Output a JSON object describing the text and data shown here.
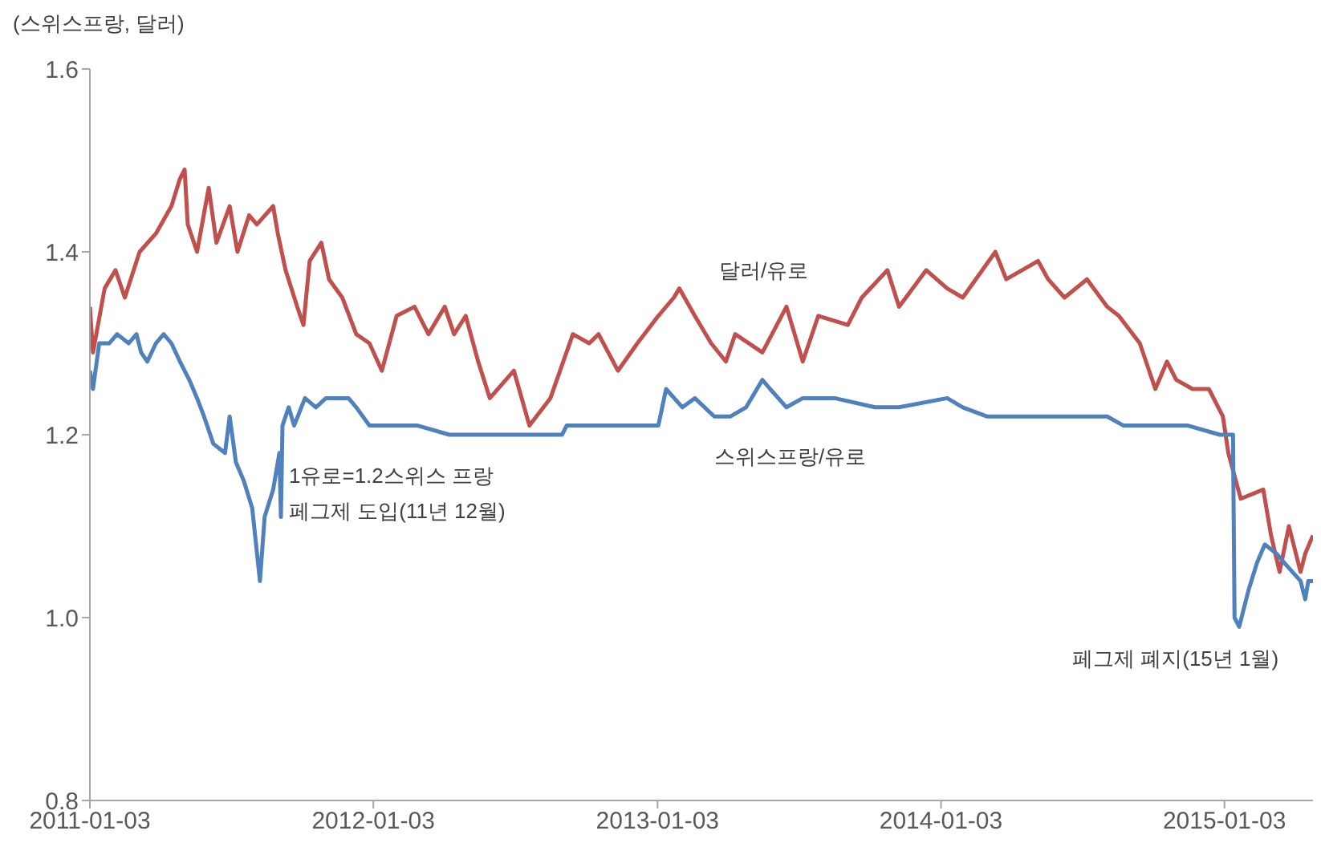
{
  "chart_data": {
    "type": "line",
    "ylabel": "(스위스프랑, 달러)",
    "xlim": [
      "2011-01-03",
      "2015-04-27"
    ],
    "xticks": [
      "2011-01-03",
      "2012-01-03",
      "2013-01-03",
      "2014-01-03",
      "2015-01-03"
    ],
    "ylim": [
      0.8,
      1.6
    ],
    "yticks": [
      {
        "value": 0.8,
        "label": "0.8"
      },
      {
        "value": 1.0,
        "label": "1.0"
      },
      {
        "value": 1.2,
        "label": "1.2"
      },
      {
        "value": 1.4,
        "label": "1.4"
      },
      {
        "value": 1.6,
        "label": "1.6"
      }
    ],
    "grid": false,
    "marker": "none",
    "line_style": "solid",
    "annotations": [
      "1유로=1.2스위스 프랑\n페그제 도입(11년 12월)",
      "페그제 폐지(15년 1월)"
    ],
    "series": [
      {
        "name": "달러/유로",
        "color": "#c0504d",
        "x": [
          "2011-01-03",
          "2011-01-07",
          "2011-01-22",
          "2011-02-05",
          "2011-02-17",
          "2011-03-08",
          "2011-03-29",
          "2011-04-18",
          "2011-04-29",
          "2011-05-05",
          "2011-05-09",
          "2011-05-21",
          "2011-06-05",
          "2011-06-15",
          "2011-07-02",
          "2011-07-12",
          "2011-07-27",
          "2011-08-06",
          "2011-08-27",
          "2011-09-02",
          "2011-09-12",
          "2011-09-27",
          "2011-10-05",
          "2011-10-13",
          "2011-10-28",
          "2011-11-07",
          "2011-11-24",
          "2011-12-12",
          "2011-12-29",
          "2012-01-14",
          "2012-02-02",
          "2012-02-25",
          "2012-03-14",
          "2012-04-04",
          "2012-04-16",
          "2012-05-01",
          "2012-05-17",
          "2012-06-01",
          "2012-07-02",
          "2012-07-22",
          "2012-08-18",
          "2012-09-16",
          "2012-10-07",
          "2012-10-19",
          "2012-11-13",
          "2012-12-08",
          "2013-01-04",
          "2013-01-24",
          "2013-01-31",
          "2013-02-20",
          "2013-03-13",
          "2013-04-01",
          "2013-04-13",
          "2013-05-18",
          "2013-06-18",
          "2013-07-09",
          "2013-07-29",
          "2013-09-05",
          "2013-09-23",
          "2013-10-26",
          "2013-11-10",
          "2013-12-15",
          "2014-01-11",
          "2014-01-31",
          "2014-03-14",
          "2014-03-28",
          "2014-05-08",
          "2014-05-21",
          "2014-06-11",
          "2014-07-10",
          "2014-08-05",
          "2014-08-20",
          "2014-09-16",
          "2014-10-06",
          "2014-10-21",
          "2014-11-02",
          "2014-11-23",
          "2014-12-14",
          "2015-01-01",
          "2015-01-08",
          "2015-01-24",
          "2015-02-22",
          "2015-03-04",
          "2015-03-15",
          "2015-03-27",
          "2015-04-11",
          "2015-04-17",
          "2015-04-27"
        ],
        "values": [
          1.34,
          1.29,
          1.36,
          1.38,
          1.35,
          1.4,
          1.42,
          1.45,
          1.48,
          1.49,
          1.43,
          1.4,
          1.47,
          1.41,
          1.45,
          1.4,
          1.44,
          1.43,
          1.45,
          1.42,
          1.38,
          1.34,
          1.32,
          1.39,
          1.41,
          1.37,
          1.35,
          1.31,
          1.3,
          1.27,
          1.33,
          1.34,
          1.31,
          1.34,
          1.31,
          1.33,
          1.28,
          1.24,
          1.27,
          1.21,
          1.24,
          1.31,
          1.3,
          1.31,
          1.27,
          1.3,
          1.33,
          1.35,
          1.36,
          1.33,
          1.3,
          1.28,
          1.31,
          1.29,
          1.34,
          1.28,
          1.33,
          1.32,
          1.35,
          1.38,
          1.34,
          1.38,
          1.36,
          1.35,
          1.4,
          1.37,
          1.39,
          1.37,
          1.35,
          1.37,
          1.34,
          1.33,
          1.3,
          1.25,
          1.28,
          1.26,
          1.25,
          1.25,
          1.22,
          1.18,
          1.13,
          1.14,
          1.09,
          1.05,
          1.1,
          1.05,
          1.07,
          1.09
        ]
      },
      {
        "name": "스위스프랑/유로",
        "color": "#4f81bd",
        "x": [
          "2011-01-03",
          "2011-01-07",
          "2011-01-15",
          "2011-01-28",
          "2011-02-07",
          "2011-02-22",
          "2011-03-04",
          "2011-03-10",
          "2011-03-18",
          "2011-03-29",
          "2011-04-08",
          "2011-04-18",
          "2011-04-29",
          "2011-05-11",
          "2011-05-21",
          "2011-05-30",
          "2011-06-11",
          "2011-06-26",
          "2011-07-02",
          "2011-07-10",
          "2011-07-20",
          "2011-07-31",
          "2011-08-10",
          "2011-08-16",
          "2011-08-27",
          "2011-09-04",
          "2011-09-06",
          "2011-09-08",
          "2011-09-16",
          "2011-09-23",
          "2011-10-07",
          "2011-10-21",
          "2011-11-03",
          "2011-11-17",
          "2011-12-02",
          "2011-12-12",
          "2011-12-29",
          "2012-01-18",
          "2012-02-29",
          "2012-04-10",
          "2012-05-21",
          "2012-07-22",
          "2012-09-02",
          "2012-09-08",
          "2012-10-13",
          "2012-11-23",
          "2012-12-08",
          "2013-01-04",
          "2013-01-14",
          "2013-02-04",
          "2013-02-20",
          "2013-03-17",
          "2013-04-07",
          "2013-04-27",
          "2013-05-18",
          "2013-05-28",
          "2013-06-18",
          "2013-07-09",
          "2013-08-19",
          "2013-10-10",
          "2013-11-10",
          "2014-01-11",
          "2014-01-31",
          "2014-03-03",
          "2014-04-03",
          "2014-06-04",
          "2014-08-05",
          "2014-08-26",
          "2014-10-06",
          "2014-11-17",
          "2014-12-28",
          "2015-01-08",
          "2015-01-14",
          "2015-01-16",
          "2015-01-22",
          "2015-02-03",
          "2015-02-14",
          "2015-02-24",
          "2015-03-11",
          "2015-03-21",
          "2015-04-11",
          "2015-04-17",
          "2015-04-21",
          "2015-04-27"
        ],
        "values": [
          1.27,
          1.25,
          1.3,
          1.3,
          1.31,
          1.3,
          1.31,
          1.29,
          1.28,
          1.3,
          1.31,
          1.3,
          1.28,
          1.26,
          1.24,
          1.22,
          1.19,
          1.18,
          1.22,
          1.17,
          1.15,
          1.12,
          1.04,
          1.11,
          1.14,
          1.18,
          1.11,
          1.21,
          1.23,
          1.21,
          1.24,
          1.23,
          1.24,
          1.24,
          1.24,
          1.23,
          1.21,
          1.21,
          1.21,
          1.2,
          1.2,
          1.2,
          1.2,
          1.21,
          1.21,
          1.21,
          1.21,
          1.21,
          1.25,
          1.23,
          1.24,
          1.22,
          1.22,
          1.23,
          1.26,
          1.25,
          1.23,
          1.24,
          1.24,
          1.23,
          1.23,
          1.24,
          1.23,
          1.22,
          1.22,
          1.22,
          1.22,
          1.21,
          1.21,
          1.21,
          1.2,
          1.2,
          1.2,
          1.0,
          0.99,
          1.03,
          1.06,
          1.08,
          1.07,
          1.06,
          1.04,
          1.02,
          1.04,
          1.04
        ]
      }
    ]
  }
}
